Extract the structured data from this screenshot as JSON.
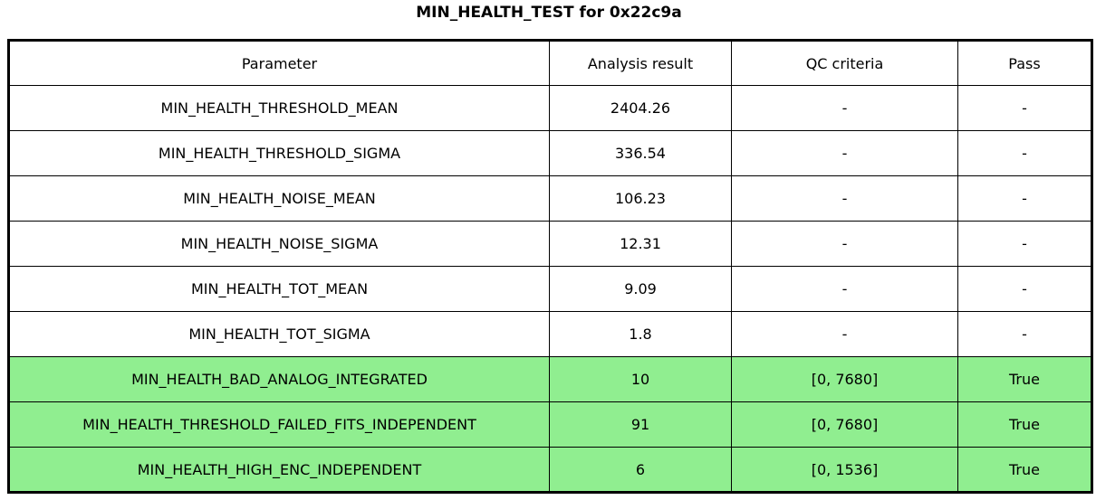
{
  "title": "MIN_HEALTH_TEST for 0x22c9a",
  "chart_data": {
    "type": "table",
    "title": "MIN_HEALTH_TEST for 0x22c9a",
    "columns": [
      "Parameter",
      "Analysis result",
      "QC criteria",
      "Pass"
    ],
    "rows": [
      {
        "parameter": "MIN_HEALTH_THRESHOLD_MEAN",
        "analysis_result": "2404.26",
        "qc_criteria": "-",
        "pass": "-",
        "highlighted": false
      },
      {
        "parameter": "MIN_HEALTH_THRESHOLD_SIGMA",
        "analysis_result": "336.54",
        "qc_criteria": "-",
        "pass": "-",
        "highlighted": false
      },
      {
        "parameter": "MIN_HEALTH_NOISE_MEAN",
        "analysis_result": "106.23",
        "qc_criteria": "-",
        "pass": "-",
        "highlighted": false
      },
      {
        "parameter": "MIN_HEALTH_NOISE_SIGMA",
        "analysis_result": "12.31",
        "qc_criteria": "-",
        "pass": "-",
        "highlighted": false
      },
      {
        "parameter": "MIN_HEALTH_TOT_MEAN",
        "analysis_result": "9.09",
        "qc_criteria": "-",
        "pass": "-",
        "highlighted": false
      },
      {
        "parameter": "MIN_HEALTH_TOT_SIGMA",
        "analysis_result": "1.8",
        "qc_criteria": "-",
        "pass": "-",
        "highlighted": false
      },
      {
        "parameter": "MIN_HEALTH_BAD_ANALOG_INTEGRATED",
        "analysis_result": "10",
        "qc_criteria": "[0, 7680]",
        "pass": "True",
        "highlighted": true
      },
      {
        "parameter": "MIN_HEALTH_THRESHOLD_FAILED_FITS_INDEPENDENT",
        "analysis_result": "91",
        "qc_criteria": "[0, 7680]",
        "pass": "True",
        "highlighted": true
      },
      {
        "parameter": "MIN_HEALTH_HIGH_ENC_INDEPENDENT",
        "analysis_result": "6",
        "qc_criteria": "[0, 1536]",
        "pass": "True",
        "highlighted": true
      }
    ],
    "layout": {
      "legend": "none",
      "grid": "table-borders",
      "highlight_meaning": "row passed QC check"
    },
    "colors": {
      "pass_green": "#90EE90",
      "border": "#000000",
      "background": "#ffffff",
      "text": "#000000"
    }
  }
}
